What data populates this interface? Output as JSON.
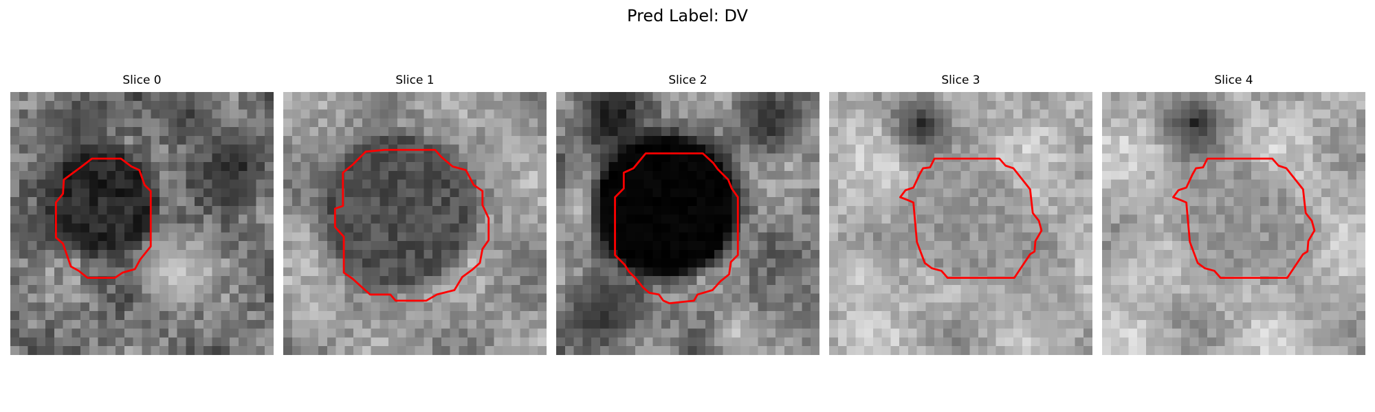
{
  "figure": {
    "title": "Pred Label: DV"
  },
  "colors": {
    "contour": "#ff0000",
    "background": "#ffffff",
    "text": "#000000"
  },
  "panels": [
    {
      "title": "Slice 0",
      "darkness": "dark-blob"
    },
    {
      "title": "Slice 1",
      "darkness": "mid-blob"
    },
    {
      "title": "Slice 2",
      "darkness": "black-blob"
    },
    {
      "title": "Slice 3",
      "darkness": "light-blob"
    },
    {
      "title": "Slice 4",
      "darkness": "light-blob"
    }
  ]
}
